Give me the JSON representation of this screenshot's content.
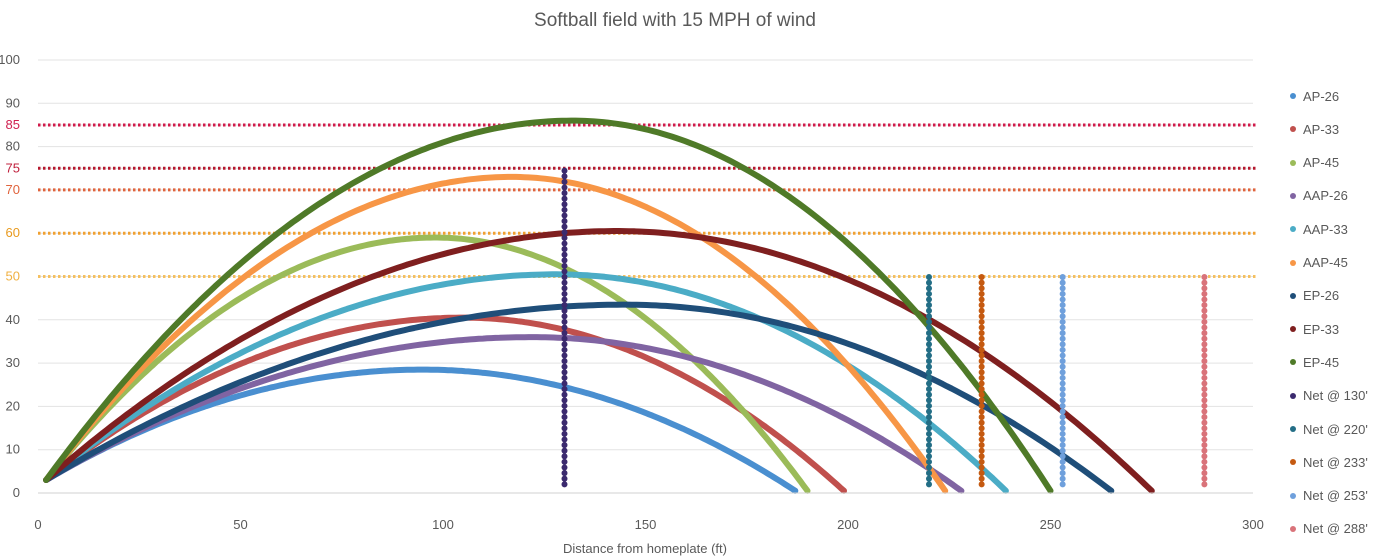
{
  "chart_data": {
    "type": "scatter",
    "title": "Softball field with 15 MPH of wind",
    "xlabel": "Distance from homeplate (ft)",
    "ylabel": "",
    "xlim": [
      0,
      300
    ],
    "ylim": [
      0,
      100
    ],
    "x_ticks": [
      "0",
      "50",
      "100",
      "150",
      "200",
      "250",
      "300"
    ],
    "y_ticks": [
      {
        "value": 0,
        "label": "0",
        "color": "#595959"
      },
      {
        "value": 10,
        "label": "10",
        "color": "#595959"
      },
      {
        "value": 20,
        "label": "20",
        "color": "#595959"
      },
      {
        "value": 30,
        "label": "30",
        "color": "#595959"
      },
      {
        "value": 40,
        "label": "40",
        "color": "#595959"
      },
      {
        "value": 50,
        "label": "50",
        "color": "#f0b040"
      },
      {
        "value": 60,
        "label": "60",
        "color": "#e89a1e"
      },
      {
        "value": 70,
        "label": "70",
        "color": "#e0633c"
      },
      {
        "value": 75,
        "label": "75",
        "color": "#c0203c"
      },
      {
        "value": 80,
        "label": "80",
        "color": "#595959"
      },
      {
        "value": 85,
        "label": "85",
        "color": "#d02050"
      },
      {
        "value": 90,
        "label": "90",
        "color": "#595959"
      },
      {
        "value": 100,
        "label": "100",
        "color": "#595959"
      }
    ],
    "grid": true,
    "legend_position": "right",
    "series": [
      {
        "name": "AP-26",
        "color": "#4a8fd0",
        "kind": "arc",
        "x_start": 2,
        "x_end": 187,
        "peak_x": 95,
        "peak_y": 28.5
      },
      {
        "name": "AP-33",
        "color": "#c0504d",
        "kind": "arc",
        "x_start": 2,
        "x_end": 199,
        "peak_x": 105,
        "peak_y": 40.5
      },
      {
        "name": "AP-45",
        "color": "#9bbb59",
        "kind": "arc",
        "x_start": 2,
        "x_end": 190,
        "peak_x": 98,
        "peak_y": 59
      },
      {
        "name": "AAP-26",
        "color": "#8064a2",
        "kind": "arc",
        "x_start": 2,
        "x_end": 228,
        "peak_x": 122,
        "peak_y": 36
      },
      {
        "name": "AAP-33",
        "color": "#4bacc6",
        "kind": "arc",
        "x_start": 2,
        "x_end": 239,
        "peak_x": 128,
        "peak_y": 50.5
      },
      {
        "name": "AAP-45",
        "color": "#f79646",
        "kind": "arc",
        "x_start": 2,
        "x_end": 224,
        "peak_x": 117,
        "peak_y": 73
      },
      {
        "name": "EP-26",
        "color": "#1f4e79",
        "kind": "arc",
        "x_start": 2,
        "x_end": 265,
        "peak_x": 145,
        "peak_y": 43.5
      },
      {
        "name": "EP-33",
        "color": "#7f1f1f",
        "kind": "arc",
        "x_start": 2,
        "x_end": 275,
        "peak_x": 143,
        "peak_y": 60.5
      },
      {
        "name": "EP-45",
        "color": "#4f7a28",
        "kind": "arc",
        "x_start": 2,
        "x_end": 250,
        "peak_x": 132,
        "peak_y": 86
      },
      {
        "name": "Net @ 130'",
        "color": "#3b2a6e",
        "kind": "net",
        "x": 130,
        "y_min": 2,
        "y_max": 75
      },
      {
        "name": "Net @ 220'",
        "color": "#236e86",
        "kind": "net",
        "x": 220,
        "y_min": 2,
        "y_max": 50
      },
      {
        "name": "Net @ 233'",
        "color": "#c55a11",
        "kind": "net",
        "x": 233,
        "y_min": 2,
        "y_max": 50
      },
      {
        "name": "Net @ 253'",
        "color": "#6fa0dc",
        "kind": "net",
        "x": 253,
        "y_min": 2,
        "y_max": 50
      },
      {
        "name": "Net @ 288'",
        "color": "#d9737a",
        "kind": "net",
        "x": 288,
        "y_min": 2,
        "y_max": 50
      }
    ],
    "reference_lines": [
      {
        "y": 85,
        "color": "#d01a4a"
      },
      {
        "y": 75,
        "color": "#b5182e"
      },
      {
        "y": 70,
        "color": "#e0633c"
      },
      {
        "y": 60,
        "color": "#f0a030"
      },
      {
        "y": 50,
        "color": "#f5c060"
      }
    ]
  }
}
